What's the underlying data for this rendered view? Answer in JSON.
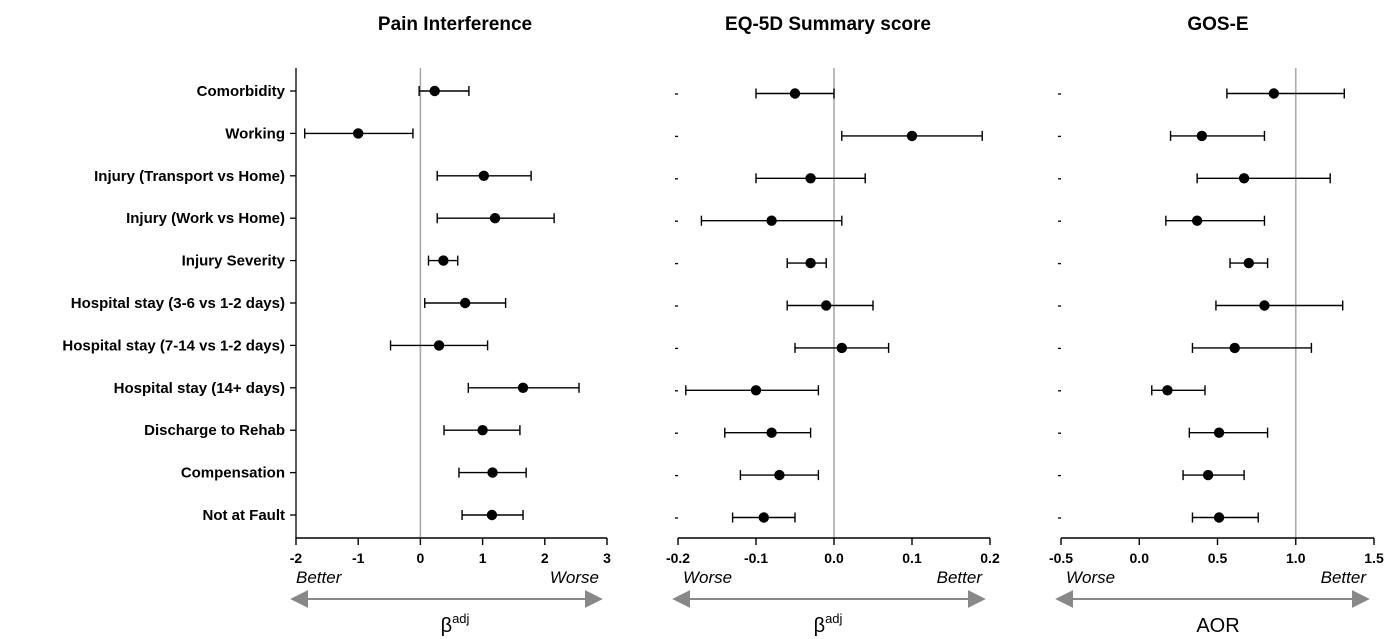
{
  "categories": [
    "Comorbidity",
    "Working",
    "Injury (Transport vs Home)",
    "Injury (Work vs Home)",
    "Injury Severity",
    "Hospital stay (3-6 vs 1-2 days)",
    "Hospital stay (7-14 vs 1-2 days)",
    "Hospital stay (14+ days)",
    "Discharge to Rehab",
    "Compensation",
    "Not at Fault"
  ],
  "chart_data": [
    {
      "type": "scatter",
      "title": "Pain Interference",
      "xlabel": "βadj",
      "xlabel_base": "β",
      "xlabel_sup": "adj",
      "xlim": [
        -2,
        3
      ],
      "ref_line": 0,
      "ticks": [
        "-2",
        "-1",
        "0",
        "1",
        "2",
        "3"
      ],
      "tick_values": [
        -2,
        -1,
        0,
        1,
        2,
        3
      ],
      "left_note": "Better",
      "right_note": "Worse",
      "series": [
        {
          "estimate": [
            0.23,
            -1.0,
            1.02,
            1.2,
            0.37,
            0.72,
            0.3,
            1.65,
            1.0,
            1.16,
            1.15
          ],
          "lower": [
            -0.02,
            -1.86,
            0.27,
            0.27,
            0.13,
            0.07,
            -0.48,
            0.77,
            0.38,
            0.62,
            0.67
          ],
          "upper": [
            0.78,
            -0.12,
            1.78,
            2.15,
            0.6,
            1.37,
            1.08,
            2.55,
            1.6,
            1.7,
            1.65
          ]
        }
      ]
    },
    {
      "type": "scatter",
      "title": "EQ-5D Summary  score",
      "xlabel": "βadj",
      "xlabel_base": "β",
      "xlabel_sup": "adj",
      "xlim": [
        -0.2,
        0.2
      ],
      "ref_line": 0,
      "ticks": [
        "-0.2",
        "-0.1",
        "0.0",
        "0.1",
        "0.2"
      ],
      "tick_values": [
        -0.2,
        -0.1,
        0.0,
        0.1,
        0.2
      ],
      "left_note": "Worse",
      "right_note": "Better",
      "series": [
        {
          "estimate": [
            -0.05,
            0.1,
            -0.03,
            -0.08,
            -0.03,
            -0.01,
            0.01,
            -0.1,
            -0.08,
            -0.07,
            -0.09
          ],
          "lower": [
            -0.1,
            0.01,
            -0.1,
            -0.17,
            -0.06,
            -0.06,
            -0.05,
            -0.19,
            -0.14,
            -0.12,
            -0.13
          ],
          "upper": [
            0.0,
            0.19,
            0.04,
            0.01,
            -0.01,
            0.05,
            0.07,
            -0.02,
            -0.03,
            -0.02,
            -0.05
          ]
        }
      ]
    },
    {
      "type": "scatter",
      "title": "GOS-E",
      "xlabel": "AOR",
      "xlim": [
        -0.5,
        1.5
      ],
      "ref_line": 1,
      "ticks": [
        "-0.5",
        "0.0",
        "0.5",
        "1.0",
        "1.5"
      ],
      "tick_values": [
        -0.5,
        0.0,
        0.5,
        1.0,
        1.5
      ],
      "left_note": "Worse",
      "right_note": "Better",
      "series": [
        {
          "estimate": [
            0.86,
            0.4,
            0.67,
            0.37,
            0.7,
            0.8,
            0.61,
            0.18,
            0.51,
            0.44,
            0.51
          ],
          "lower": [
            0.56,
            0.2,
            0.37,
            0.17,
            0.58,
            0.49,
            0.34,
            0.08,
            0.32,
            0.28,
            0.34
          ],
          "upper": [
            1.31,
            0.8,
            1.22,
            0.8,
            0.82,
            1.3,
            1.1,
            0.42,
            0.82,
            0.67,
            0.76
          ]
        }
      ]
    }
  ]
}
